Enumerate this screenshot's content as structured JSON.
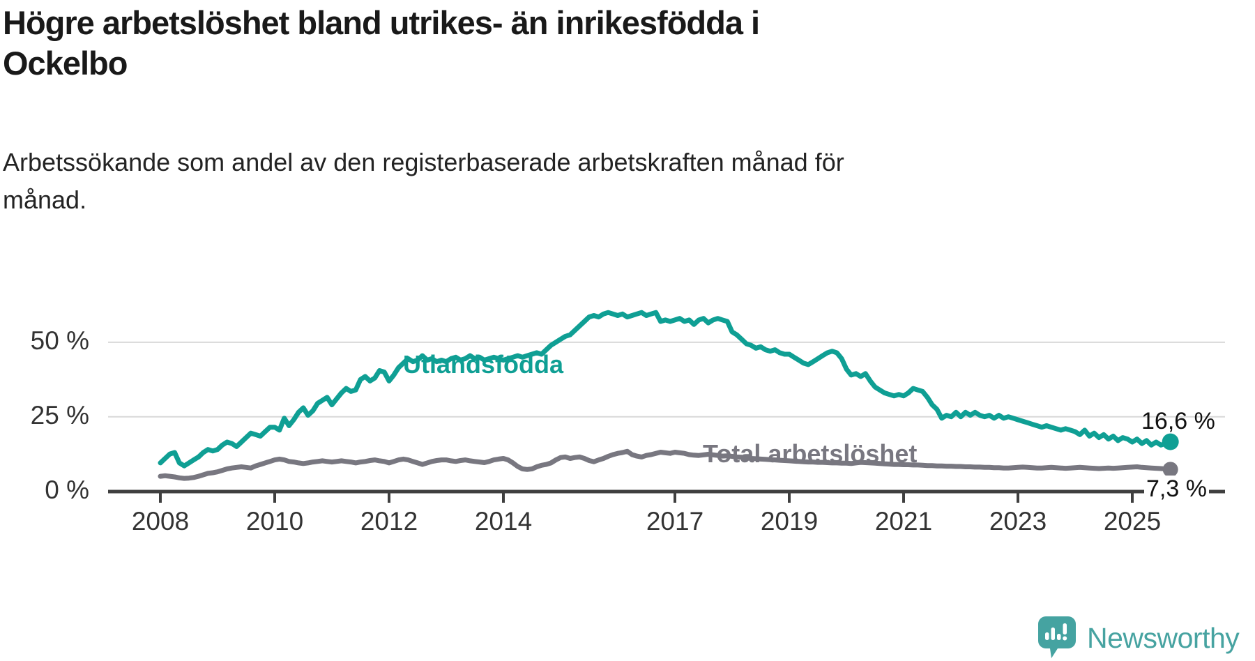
{
  "header": {
    "title": "Högre arbetslöshet bland utrikes- än inrikesfödda i\nOckelbo",
    "subtitle": "Arbetssökande som andel av den registerbaserade arbetskraften månad för\nmånad."
  },
  "footer": {
    "brand": "Newsworthy",
    "brand_color": "#47a3a1"
  },
  "chart_data": {
    "type": "line",
    "title": "Högre arbetslöshet bland utrikes- än inrikesfödda i Ockelbo",
    "subtitle": "Arbetssökande som andel av den registerbaserade arbetskraften månad för månad.",
    "unit": "%",
    "grid": "horizontal-only",
    "x_start_year": 2008.0,
    "x_step_years": 0.0833333,
    "x_end_approx": "2025-09",
    "x_axis_ticks": [
      2008,
      2010,
      2012,
      2014,
      2017,
      2019,
      2021,
      2023,
      2025
    ],
    "y_axis_ticks": [
      {
        "value": 0,
        "label": "0 %"
      },
      {
        "value": 25,
        "label": "25 %"
      },
      {
        "value": 50,
        "label": "50 %"
      }
    ],
    "ylim": [
      0,
      63
    ],
    "colors": {
      "grid": "#d8d8d8",
      "axis": "#3f3f3f",
      "tick_text": "#333333"
    },
    "series": [
      {
        "name": "Utlandsfödda",
        "color": "#0f9f94",
        "end_label": "16,6 %",
        "end_value": 16.6,
        "values": [
          9.5,
          11.0,
          12.5,
          13.0,
          9.5,
          8.5,
          9.5,
          10.5,
          11.5,
          13.0,
          14.0,
          13.5,
          14.0,
          15.5,
          16.5,
          16.0,
          15.0,
          16.5,
          18.0,
          19.5,
          19.0,
          18.5,
          20.0,
          21.5,
          21.5,
          20.5,
          24.5,
          22.0,
          24.0,
          26.5,
          28.0,
          25.5,
          27.0,
          29.5,
          30.5,
          31.5,
          29.0,
          31.0,
          33.0,
          34.5,
          33.5,
          34.0,
          37.5,
          38.5,
          37.0,
          38.0,
          40.5,
          40.0,
          37.0,
          39.0,
          41.5,
          43.0,
          44.5,
          43.5,
          44.0,
          45.5,
          44.0,
          44.5,
          43.5,
          44.0,
          43.5,
          44.5,
          45.0,
          44.0,
          44.5,
          45.5,
          44.5,
          45.0,
          44.0,
          44.5,
          45.0,
          44.5,
          44.0,
          44.5,
          45.0,
          45.5,
          45.0,
          45.5,
          46.0,
          46.5,
          46.0,
          47.5,
          49.0,
          50.0,
          51.0,
          52.0,
          52.5,
          54.0,
          55.5,
          57.0,
          58.5,
          59.0,
          58.5,
          59.5,
          60.0,
          59.5,
          59.0,
          59.5,
          58.5,
          59.0,
          59.5,
          60.0,
          59.0,
          59.5,
          60.0,
          57.0,
          57.5,
          57.0,
          57.5,
          58.0,
          57.0,
          57.5,
          56.0,
          57.5,
          58.0,
          56.5,
          57.5,
          58.0,
          57.5,
          57.0,
          53.5,
          52.5,
          51.0,
          49.5,
          49.0,
          48.0,
          48.5,
          47.5,
          47.0,
          47.5,
          46.5,
          46.0,
          46.0,
          45.0,
          44.0,
          43.0,
          42.5,
          43.5,
          44.5,
          45.5,
          46.5,
          47.0,
          46.5,
          44.5,
          41.0,
          39.0,
          39.5,
          38.5,
          39.5,
          37.0,
          35.0,
          34.0,
          33.0,
          32.5,
          32.0,
          32.5,
          32.0,
          33.0,
          34.5,
          34.0,
          33.5,
          31.5,
          29.0,
          27.5,
          24.5,
          25.5,
          25.0,
          26.5,
          25.0,
          26.5,
          25.5,
          26.5,
          25.5,
          25.0,
          25.5,
          24.5,
          25.5,
          24.5,
          25.0,
          24.5,
          24.0,
          23.5,
          23.0,
          22.5,
          22.0,
          21.5,
          22.0,
          21.5,
          21.0,
          20.5,
          21.0,
          20.5,
          20.0,
          19.0,
          20.5,
          18.5,
          19.5,
          18.0,
          19.0,
          17.5,
          18.5,
          17.0,
          18.0,
          17.5,
          16.5,
          17.5,
          16.0,
          17.0,
          15.5,
          16.5,
          15.5,
          16.0,
          16.6
        ]
      },
      {
        "name": "Total arbetslöshet",
        "color": "#787780",
        "end_label": "7,3 %",
        "end_value": 7.3,
        "values": [
          5.0,
          5.2,
          5.0,
          4.8,
          4.5,
          4.3,
          4.4,
          4.6,
          5.0,
          5.5,
          6.0,
          6.2,
          6.5,
          7.0,
          7.5,
          7.8,
          8.0,
          8.2,
          8.0,
          7.8,
          8.5,
          9.0,
          9.5,
          10.0,
          10.5,
          10.8,
          10.5,
          10.0,
          9.8,
          9.5,
          9.3,
          9.5,
          9.8,
          10.0,
          10.2,
          10.0,
          9.8,
          10.0,
          10.2,
          10.0,
          9.8,
          9.5,
          9.8,
          10.0,
          10.3,
          10.5,
          10.2,
          10.0,
          9.5,
          10.0,
          10.5,
          10.8,
          10.5,
          10.0,
          9.5,
          9.0,
          9.5,
          10.0,
          10.3,
          10.5,
          10.5,
          10.2,
          10.0,
          10.3,
          10.5,
          10.2,
          10.0,
          9.8,
          9.6,
          10.0,
          10.5,
          10.8,
          11.0,
          10.5,
          9.5,
          8.3,
          7.5,
          7.3,
          7.5,
          8.2,
          8.7,
          9.0,
          9.5,
          10.5,
          11.3,
          11.5,
          11.0,
          11.3,
          11.5,
          11.0,
          10.3,
          9.9,
          10.5,
          11.0,
          11.7,
          12.3,
          12.7,
          13.0,
          13.4,
          12.3,
          11.8,
          11.5,
          12.0,
          12.3,
          12.7,
          13.1,
          12.9,
          12.7,
          13.1,
          12.9,
          12.7,
          12.3,
          12.1,
          12.0,
          12.2,
          12.4,
          12.2,
          12.0,
          11.8,
          11.9,
          11.7,
          11.5,
          11.4,
          11.2,
          11.0,
          10.9,
          10.8,
          10.7,
          10.6,
          10.5,
          10.4,
          10.3,
          10.2,
          10.1,
          10.0,
          9.9,
          9.8,
          9.8,
          9.7,
          9.7,
          9.6,
          9.5,
          9.5,
          9.4,
          9.4,
          9.3,
          9.5,
          9.7,
          9.6,
          9.5,
          9.4,
          9.3,
          9.2,
          9.1,
          9.0,
          9.0,
          8.9,
          8.9,
          8.8,
          8.8,
          8.7,
          8.6,
          8.6,
          8.5,
          8.5,
          8.4,
          8.4,
          8.3,
          8.3,
          8.2,
          8.2,
          8.1,
          8.1,
          8.0,
          8.0,
          7.9,
          7.9,
          7.8,
          7.8,
          7.9,
          8.0,
          8.1,
          8.0,
          7.9,
          7.8,
          7.8,
          7.9,
          8.0,
          7.9,
          7.8,
          7.7,
          7.8,
          7.9,
          8.0,
          7.9,
          7.8,
          7.7,
          7.6,
          7.7,
          7.8,
          7.7,
          7.8,
          7.9,
          8.0,
          8.1,
          8.2,
          8.0,
          7.9,
          7.8,
          7.7,
          7.6,
          7.5,
          7.3
        ]
      }
    ]
  }
}
